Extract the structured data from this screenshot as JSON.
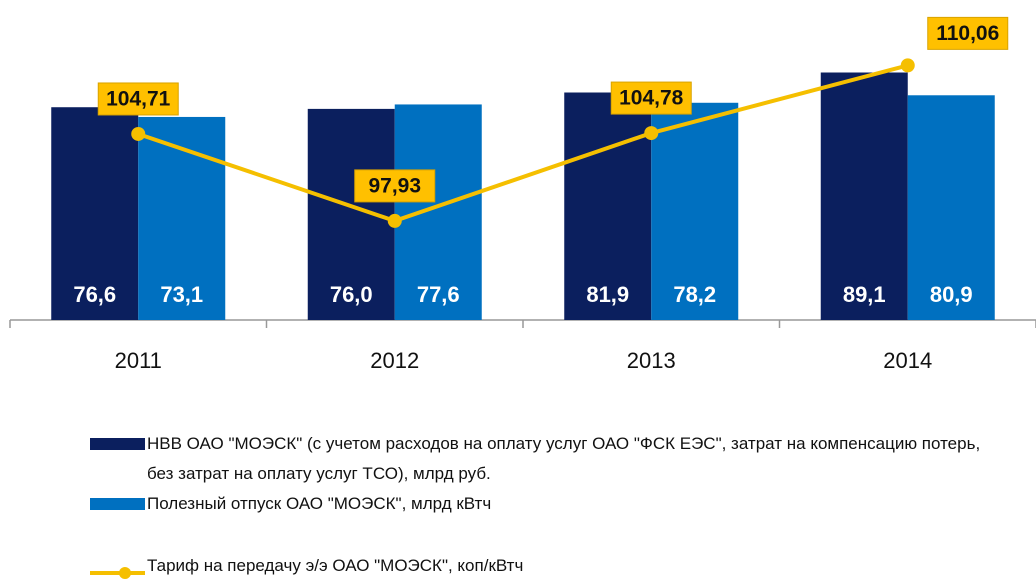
{
  "chart_data": {
    "type": "bar",
    "categories": [
      "2011",
      "2012",
      "2013",
      "2014"
    ],
    "series": [
      {
        "name": "НВВ ОАО \"МОЭСК\" (с учетом расходов на оплату услуг ОАО \"ФСК ЕЭС\", затрат на компенсацию потерь, без затрат на оплату услуг ТСО), млрд руб.",
        "color": "#0b1f5e",
        "type": "bar",
        "values": [
          76.6,
          76.0,
          81.9,
          89.1
        ],
        "value_labels": [
          "76,6",
          "76,0",
          "81,9",
          "89,1"
        ]
      },
      {
        "name": "Полезный отпуск ОАО \"МОЭСК\", млрд кВтч",
        "color": "#0070c0",
        "type": "bar",
        "values": [
          73.1,
          77.6,
          78.2,
          80.9
        ],
        "value_labels": [
          "73,1",
          "77,6",
          "78,2",
          "80,9"
        ]
      },
      {
        "name": "Тариф на передачу э/э ОАО \"МОЭСК\", коп/кВтч",
        "color": "#f5bf00",
        "type": "line",
        "axis": "y2",
        "values": [
          104.71,
          97.93,
          104.78,
          110.06
        ],
        "value_labels": [
          "104,71",
          "97,93",
          "104,78",
          "110,06"
        ]
      }
    ],
    "ylim": [
      0,
      108
    ],
    "y2lim": [
      90.2,
      113.6
    ],
    "grid": false,
    "legend": "bottom"
  }
}
